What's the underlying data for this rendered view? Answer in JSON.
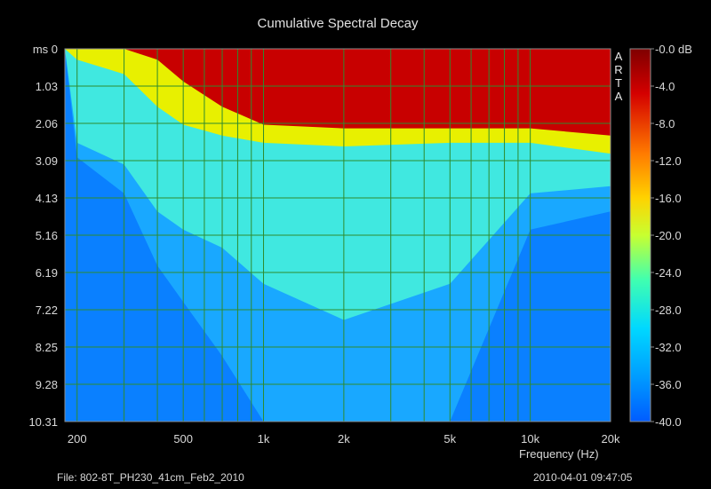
{
  "chart_data": {
    "type": "heatmap",
    "title": "Cumulative Spectral Decay",
    "xlabel": "Frequency (Hz)",
    "ylabel": "ms",
    "x_scale": "log",
    "xlim": [
      180,
      20000
    ],
    "x_ticks": [
      {
        "value": 200,
        "label": "200"
      },
      {
        "value": 500,
        "label": "500"
      },
      {
        "value": 1000,
        "label": "1k"
      },
      {
        "value": 2000,
        "label": "2k"
      },
      {
        "value": 5000,
        "label": "5k"
      },
      {
        "value": 10000,
        "label": "10k"
      },
      {
        "value": 20000,
        "label": "20k"
      }
    ],
    "ylim": [
      0,
      10.31
    ],
    "y_ticks": [
      "ms 0",
      "1.03",
      "2.06",
      "3.09",
      "4.13",
      "5.16",
      "6.19",
      "7.22",
      "8.25",
      "9.28",
      "10.31"
    ],
    "colorbar": {
      "range_db": [
        -40,
        0
      ],
      "tick_labels": [
        "-0.0 dB",
        "-4.0",
        "-8.0",
        "-12.0",
        "-16.0",
        "-20.0",
        "-24.0",
        "-28.0",
        "-32.0",
        "-36.0",
        "-40.0"
      ],
      "colormap": "jet"
    },
    "grid": true,
    "decay_profile": [
      {
        "freq": 200,
        "red_end_ms": 0,
        "yellow_end_ms": 0.3,
        "cyan_end_ms": 2.6,
        "floor_ms": 3.0
      },
      {
        "freq": 300,
        "red_end_ms": 0,
        "yellow_end_ms": 0.7,
        "cyan_end_ms": 3.2,
        "floor_ms": 4.0
      },
      {
        "freq": 400,
        "red_end_ms": 0.3,
        "yellow_end_ms": 1.6,
        "cyan_end_ms": 4.5,
        "floor_ms": 6.0
      },
      {
        "freq": 500,
        "red_end_ms": 0.9,
        "yellow_end_ms": 2.1,
        "cyan_end_ms": 5.0,
        "floor_ms": 7.0
      },
      {
        "freq": 700,
        "red_end_ms": 1.6,
        "yellow_end_ms": 2.4,
        "cyan_end_ms": 5.5,
        "floor_ms": 8.5
      },
      {
        "freq": 1000,
        "red_end_ms": 2.1,
        "yellow_end_ms": 2.6,
        "cyan_end_ms": 6.5,
        "floor_ms": 10.31
      },
      {
        "freq": 2000,
        "red_end_ms": 2.2,
        "yellow_end_ms": 2.7,
        "cyan_end_ms": 7.5,
        "floor_ms": 10.31
      },
      {
        "freq": 5000,
        "red_end_ms": 2.2,
        "yellow_end_ms": 2.6,
        "cyan_end_ms": 6.5,
        "floor_ms": 10.31
      },
      {
        "freq": 10000,
        "red_end_ms": 2.2,
        "yellow_end_ms": 2.6,
        "cyan_end_ms": 4.0,
        "floor_ms": 5.0
      },
      {
        "freq": 20000,
        "red_end_ms": 2.4,
        "yellow_end_ms": 2.9,
        "cyan_end_ms": 3.8,
        "floor_ms": 4.5
      }
    ]
  },
  "watermark": "ARTA",
  "file_label": "File: 802-8T_PH230_41cm_Feb2_2010",
  "datetime": "2010-04-01  09:47:05",
  "colors": {
    "grid": "#2e8b2e",
    "frame": "#8c8c8c",
    "background": "#000000",
    "text": "#d8d8d8"
  }
}
